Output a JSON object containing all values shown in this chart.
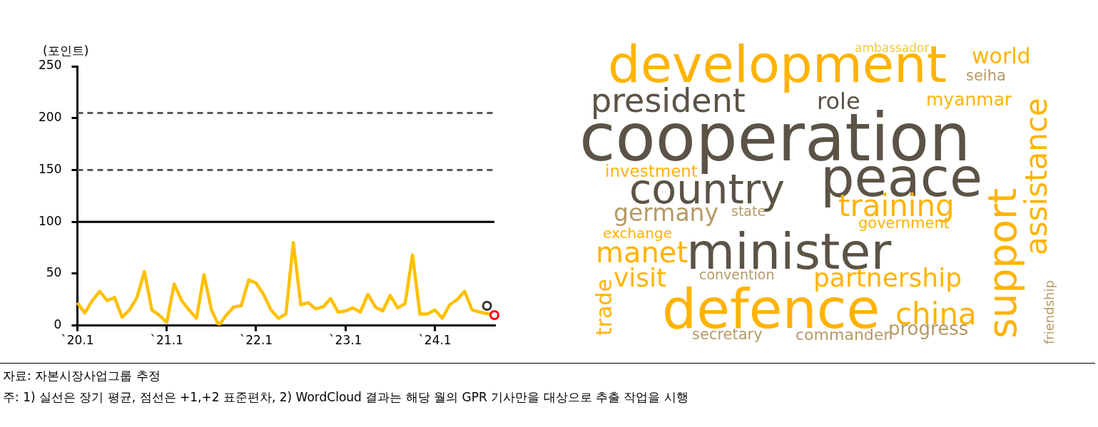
{
  "chart_data": [
    {
      "type": "line",
      "ylabel": "(포인트)",
      "categories": [
        "`20.1",
        null,
        null,
        null,
        null,
        null,
        null,
        null,
        null,
        null,
        null,
        null,
        "`21.1",
        null,
        null,
        null,
        null,
        null,
        null,
        null,
        null,
        null,
        null,
        null,
        "`22.1",
        null,
        null,
        null,
        null,
        null,
        null,
        null,
        null,
        null,
        null,
        null,
        "`23.1",
        null,
        null,
        null,
        null,
        null,
        null,
        null,
        null,
        null,
        null,
        null,
        "`24.1",
        null,
        null,
        null,
        null,
        null,
        null,
        null,
        null
      ],
      "series": [
        {
          "color": "#ffc000",
          "values": [
            22,
            12,
            24,
            33,
            24,
            27,
            8,
            15,
            27,
            52,
            15,
            10,
            3,
            40,
            24,
            15,
            7,
            49,
            15,
            0,
            10,
            18,
            19,
            44,
            41,
            30,
            15,
            7,
            11,
            80,
            20,
            22,
            16,
            18,
            26,
            13,
            14,
            17,
            13,
            30,
            18,
            14,
            29,
            17,
            21,
            68,
            11,
            11,
            15,
            7,
            20,
            25,
            33,
            15,
            13,
            null,
            10
          ]
        },
        {
          "type": "scatter",
          "marker": "circle",
          "color": "#333333",
          "values": [
            null,
            null,
            null,
            null,
            null,
            null,
            null,
            null,
            null,
            null,
            null,
            null,
            null,
            null,
            null,
            null,
            null,
            null,
            null,
            null,
            null,
            null,
            null,
            null,
            null,
            null,
            null,
            null,
            null,
            null,
            null,
            null,
            null,
            null,
            null,
            null,
            null,
            null,
            null,
            null,
            null,
            null,
            null,
            null,
            null,
            null,
            null,
            null,
            null,
            null,
            null,
            null,
            null,
            null,
            null,
            19,
            null
          ]
        },
        {
          "type": "scatter",
          "marker": "circle",
          "color": "#ff0000",
          "values": [
            null,
            null,
            null,
            null,
            null,
            null,
            null,
            null,
            null,
            null,
            null,
            null,
            null,
            null,
            null,
            null,
            null,
            null,
            null,
            null,
            null,
            null,
            null,
            null,
            null,
            null,
            null,
            null,
            null,
            null,
            null,
            null,
            null,
            null,
            null,
            null,
            null,
            null,
            null,
            null,
            null,
            null,
            null,
            null,
            null,
            null,
            null,
            null,
            null,
            null,
            null,
            null,
            null,
            null,
            null,
            null,
            10
          ]
        }
      ],
      "ylim": [
        0,
        250
      ],
      "yticks": [
        0,
        50,
        100,
        150,
        200,
        250
      ],
      "grid": false,
      "legend": false,
      "ref_lines": [
        {
          "axis": "y",
          "value": 100,
          "color": "#000000",
          "line_style": "solid"
        },
        {
          "axis": "y",
          "value": 150,
          "color": "#595959",
          "line_style": "dashed"
        },
        {
          "axis": "y",
          "value": 205,
          "color": "#595959",
          "line_style": "dashed"
        }
      ],
      "annotations": [
        "자료: 자본시장사업그룹 추정",
        "주: 1) 실선은 장기 평균, 점선은 +1,+2 표준편차, 2) WordCloud 결과는 해당 월의 GPR 기사만을 대상으로 추출 작업을 시행"
      ]
    },
    {
      "type": "other",
      "annotations": [
        "development",
        "ambassador",
        "world",
        "seiha",
        "president",
        "role",
        "myanmar",
        "cooperation",
        "peace",
        "investment",
        "country",
        "training",
        "germany",
        "state",
        "government",
        "exchange",
        "manet",
        "minister",
        "visit",
        "convention",
        "partnership",
        "defence",
        "china",
        "secretary",
        "commander",
        "progress",
        "assistance",
        "support",
        "friendship",
        "trade"
      ],
      "colors": [
        "#ffb300",
        "#f5c842",
        "#ffb300",
        "#b59a66",
        "#5b5346",
        "#5b5346",
        "#ffb300",
        "#5b5346",
        "#5b5346",
        "#ffb300",
        "#5b5346",
        "#ffb300",
        "#b59a66",
        "#b59a66",
        "#ffb300",
        "#ffb300",
        "#ffb300",
        "#5b5346",
        "#ffb300",
        "#b59a66",
        "#ffb300",
        "#ffb300",
        "#ffb300",
        "#b59a66",
        "#b59a66",
        "#b59a66",
        "#ffb300",
        "#ffb300",
        "#b59a66",
        "#ffb300"
      ]
    }
  ]
}
